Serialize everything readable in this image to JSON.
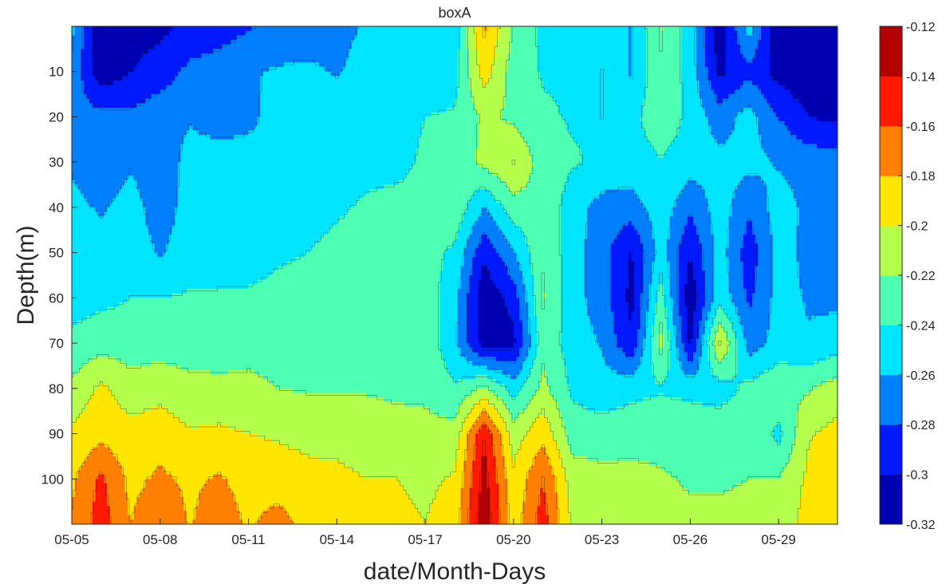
{
  "chart_data": {
    "type": "heatmap",
    "subtype": "filled-contour",
    "title": "boxA",
    "xlabel": "date/Month-Days",
    "ylabel": "Depth(m)",
    "x_ticks": [
      "05-05",
      "05-08",
      "05-11",
      "05-14",
      "05-17",
      "05-20",
      "05-23",
      "05-26",
      "05-29"
    ],
    "x_range_days": [
      "05-05",
      "05-31"
    ],
    "y_ticks": [
      10,
      20,
      30,
      40,
      50,
      60,
      70,
      80,
      90,
      100
    ],
    "y_range": [
      0,
      110
    ],
    "y_direction": "reverse",
    "colorbar": {
      "colormap": "jet",
      "range": [
        -0.32,
        -0.12
      ],
      "ticks": [
        -0.12,
        -0.14,
        -0.16,
        -0.18,
        -0.2,
        -0.22,
        -0.24,
        -0.26,
        -0.28,
        -0.3,
        -0.32
      ],
      "placement": "right"
    },
    "x": [
      "05-05",
      "05-06",
      "05-07",
      "05-08",
      "05-09",
      "05-10",
      "05-11",
      "05-12",
      "05-13",
      "05-14",
      "05-15",
      "05-16",
      "05-17",
      "05-18",
      "05-19",
      "05-20",
      "05-21",
      "05-22",
      "05-23",
      "05-24",
      "05-25",
      "05-26",
      "05-27",
      "05-28",
      "05-29",
      "05-30",
      "05-31"
    ],
    "depth": [
      0,
      10,
      20,
      30,
      40,
      50,
      60,
      70,
      80,
      90,
      100,
      110
    ],
    "values": [
      [
        -0.255,
        -0.32,
        -0.31,
        -0.305,
        -0.295,
        -0.29,
        -0.282,
        -0.275,
        -0.275,
        -0.266,
        -0.258,
        -0.252,
        -0.252,
        -0.252,
        -0.176,
        -0.222,
        -0.245,
        -0.25,
        -0.242,
        -0.262,
        -0.218,
        -0.25,
        -0.315,
        -0.25,
        -0.318,
        -0.32,
        -0.32
      ],
      [
        -0.264,
        -0.315,
        -0.3,
        -0.29,
        -0.275,
        -0.27,
        -0.262,
        -0.258,
        -0.255,
        -0.262,
        -0.252,
        -0.252,
        -0.25,
        -0.248,
        -0.19,
        -0.23,
        -0.242,
        -0.246,
        -0.24,
        -0.262,
        -0.222,
        -0.248,
        -0.305,
        -0.285,
        -0.308,
        -0.315,
        -0.32
      ],
      [
        -0.275,
        -0.272,
        -0.275,
        -0.268,
        -0.262,
        -0.27,
        -0.266,
        -0.25,
        -0.25,
        -0.248,
        -0.246,
        -0.244,
        -0.24,
        -0.238,
        -0.216,
        -0.224,
        -0.236,
        -0.242,
        -0.24,
        -0.248,
        -0.224,
        -0.246,
        -0.27,
        -0.252,
        -0.28,
        -0.3,
        -0.305
      ],
      [
        -0.262,
        -0.275,
        -0.262,
        -0.275,
        -0.252,
        -0.25,
        -0.25,
        -0.248,
        -0.248,
        -0.246,
        -0.244,
        -0.244,
        -0.238,
        -0.236,
        -0.214,
        -0.2,
        -0.23,
        -0.238,
        -0.244,
        -0.248,
        -0.242,
        -0.25,
        -0.255,
        -0.254,
        -0.262,
        -0.268,
        -0.27
      ],
      [
        -0.255,
        -0.262,
        -0.252,
        -0.27,
        -0.252,
        -0.25,
        -0.25,
        -0.248,
        -0.246,
        -0.242,
        -0.238,
        -0.236,
        -0.236,
        -0.225,
        -0.26,
        -0.228,
        -0.226,
        -0.25,
        -0.268,
        -0.27,
        -0.248,
        -0.276,
        -0.25,
        -0.276,
        -0.25,
        -0.265,
        -0.27
      ],
      [
        -0.252,
        -0.255,
        -0.25,
        -0.262,
        -0.25,
        -0.248,
        -0.246,
        -0.242,
        -0.24,
        -0.236,
        -0.234,
        -0.232,
        -0.232,
        -0.244,
        -0.296,
        -0.262,
        -0.222,
        -0.252,
        -0.272,
        -0.302,
        -0.25,
        -0.3,
        -0.25,
        -0.292,
        -0.252,
        -0.265,
        -0.27
      ],
      [
        -0.25,
        -0.245,
        -0.24,
        -0.24,
        -0.238,
        -0.238,
        -0.238,
        -0.236,
        -0.236,
        -0.234,
        -0.232,
        -0.23,
        -0.23,
        -0.252,
        -0.316,
        -0.292,
        -0.218,
        -0.252,
        -0.27,
        -0.306,
        -0.23,
        -0.316,
        -0.246,
        -0.284,
        -0.252,
        -0.262,
        -0.265
      ],
      [
        -0.234,
        -0.228,
        -0.23,
        -0.23,
        -0.23,
        -0.228,
        -0.226,
        -0.226,
        -0.226,
        -0.226,
        -0.226,
        -0.226,
        -0.226,
        -0.256,
        -0.31,
        -0.306,
        -0.226,
        -0.25,
        -0.262,
        -0.298,
        -0.212,
        -0.304,
        -0.196,
        -0.27,
        -0.252,
        -0.258,
        -0.25
      ],
      [
        -0.216,
        -0.196,
        -0.212,
        -0.206,
        -0.214,
        -0.216,
        -0.216,
        -0.22,
        -0.222,
        -0.222,
        -0.222,
        -0.224,
        -0.224,
        -0.238,
        -0.215,
        -0.248,
        -0.214,
        -0.244,
        -0.252,
        -0.246,
        -0.242,
        -0.246,
        -0.25,
        -0.234,
        -0.224,
        -0.222,
        -0.21
      ],
      [
        -0.196,
        -0.186,
        -0.192,
        -0.19,
        -0.198,
        -0.196,
        -0.2,
        -0.202,
        -0.204,
        -0.206,
        -0.208,
        -0.212,
        -0.214,
        -0.212,
        -0.142,
        -0.21,
        -0.186,
        -0.23,
        -0.23,
        -0.228,
        -0.226,
        -0.226,
        -0.226,
        -0.222,
        -0.246,
        -0.202,
        -0.194
      ],
      [
        -0.184,
        -0.156,
        -0.186,
        -0.176,
        -0.184,
        -0.178,
        -0.188,
        -0.192,
        -0.196,
        -0.196,
        -0.2,
        -0.2,
        -0.204,
        -0.198,
        -0.132,
        -0.196,
        -0.16,
        -0.21,
        -0.214,
        -0.214,
        -0.218,
        -0.222,
        -0.222,
        -0.22,
        -0.22,
        -0.196,
        -0.188
      ],
      [
        -0.178,
        -0.15,
        -0.18,
        -0.162,
        -0.182,
        -0.166,
        -0.184,
        -0.17,
        -0.188,
        -0.19,
        -0.196,
        -0.196,
        -0.2,
        -0.19,
        -0.125,
        -0.19,
        -0.15,
        -0.204,
        -0.208,
        -0.212,
        -0.214,
        -0.216,
        -0.216,
        -0.216,
        -0.214,
        -0.192,
        -0.186
      ]
    ]
  }
}
